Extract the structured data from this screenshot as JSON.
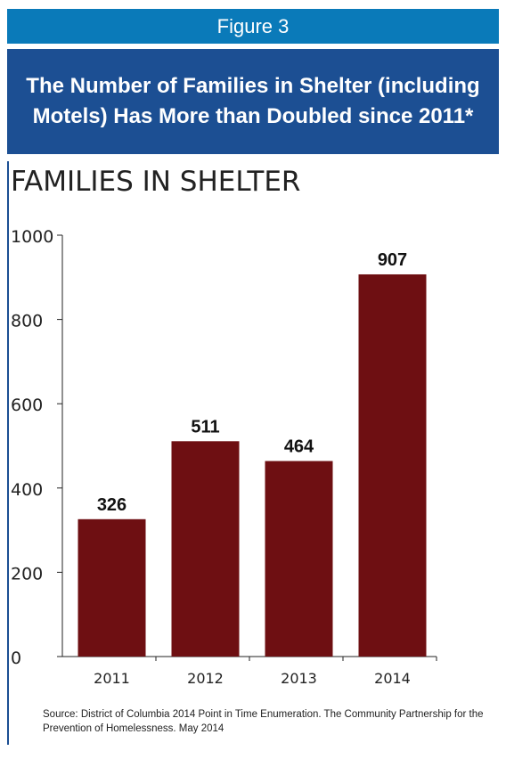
{
  "header": {
    "figure_label": "Figure 3",
    "title": "The Number of Families in Shelter (including Motels) Has More than Doubled since 2011*"
  },
  "chart_data": {
    "type": "bar",
    "title": "FAMILIES IN SHELTER",
    "categories": [
      "2011",
      "2012",
      "2013",
      "2014"
    ],
    "values": [
      326,
      511,
      464,
      907
    ],
    "data_labels": [
      "326",
      "511",
      "464",
      "907"
    ],
    "yticks": [
      "0",
      "200",
      "400",
      "600",
      "800",
      "1000"
    ],
    "ylim": [
      0,
      1000
    ],
    "xlabel": "",
    "ylabel": "",
    "grid": false,
    "bar_color": "#6e0f12"
  },
  "source": "Source:  District of Columbia 2014 Point in Time Enumeration. The Community Partnership for the Prevention of Homelessness. May 2014"
}
